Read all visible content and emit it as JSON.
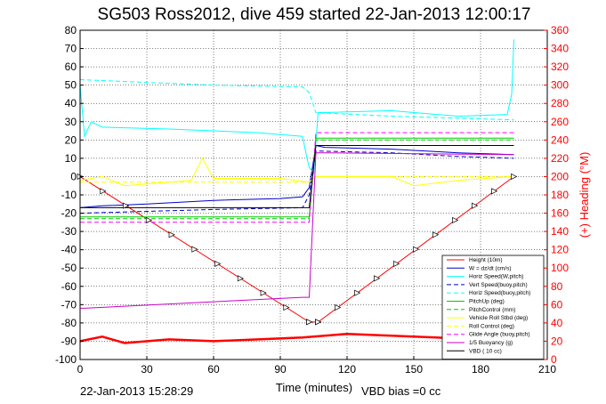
{
  "chart_data": {
    "type": "line",
    "title": "SG503 Ross2012, dive 459 started 22-Jan-2013 12:00:17",
    "xlabel": "Time (minutes)",
    "ylabel": "",
    "y2label": "(+) Heading (°M)",
    "xlim": [
      0,
      210
    ],
    "ylim": [
      -100,
      80
    ],
    "y2lim": [
      0,
      360
    ],
    "xticks": [
      "0",
      "30",
      "60",
      "90",
      "120",
      "150",
      "180",
      "210"
    ],
    "yticks": [
      "-100",
      "-90",
      "-80",
      "-70",
      "-60",
      "-50",
      "-40",
      "-30",
      "-20",
      "-10",
      "0",
      "10",
      "20",
      "30",
      "40",
      "50",
      "60",
      "70",
      "80"
    ],
    "y2ticks": [
      "0",
      "20",
      "40",
      "60",
      "80",
      "100",
      "120",
      "140",
      "160",
      "180",
      "200",
      "220",
      "240",
      "260",
      "280",
      "300",
      "320",
      "340",
      "360"
    ],
    "grid": true,
    "legend_position": "bottom-right",
    "footer_left": "22-Jan-2013 15:28:29",
    "footer_right": "VBD bias =0 cc",
    "series": [
      {
        "name": "Height (10m)",
        "color": "#ff0000",
        "style": "solid",
        "x": [
          0,
          103,
          107,
          195
        ],
        "y": [
          0,
          -79.5,
          -79.5,
          0
        ]
      },
      {
        "name": "W = dz/dt (cm/s)",
        "color": "#0000cc",
        "style": "solid",
        "x": [
          0,
          10,
          30,
          60,
          90,
          100,
          103,
          106,
          110,
          140,
          170,
          195
        ],
        "y": [
          -17,
          -16,
          -15,
          -13,
          -12,
          -11,
          -6,
          17,
          16,
          15,
          13,
          12
        ]
      },
      {
        "name": "Horiz Speed(W,pitch)",
        "color": "#00ffff",
        "style": "solid",
        "x": [
          0,
          2,
          5,
          10,
          40,
          80,
          100,
          102,
          103,
          105,
          107,
          110,
          140,
          170,
          192,
          194,
          195
        ],
        "y": [
          50,
          22,
          30,
          27,
          26,
          24,
          22,
          10,
          5,
          2,
          35,
          35,
          36,
          33,
          34,
          45,
          75
        ]
      },
      {
        "name": "Vert Speed(buoy,pitch)",
        "color": "#0000cc",
        "style": "dashed",
        "x": [
          0,
          30,
          60,
          100,
          103,
          106,
          140,
          170,
          195
        ],
        "y": [
          -20,
          -19,
          -18,
          -17,
          -10,
          14,
          13,
          11,
          10
        ]
      },
      {
        "name": "Horiz Speed(buoy,pitch)",
        "color": "#00ffff",
        "style": "dashed",
        "x": [
          0,
          20,
          60,
          100,
          103,
          106,
          140,
          195
        ],
        "y": [
          53,
          52,
          50,
          49,
          46,
          35,
          33,
          31
        ]
      },
      {
        "name": "PitchUp (deg)",
        "color": "#00cc00",
        "style": "solid",
        "x": [
          0,
          103,
          106,
          195
        ],
        "y": [
          -22,
          -22,
          21,
          21
        ]
      },
      {
        "name": "PitchControl (mm)",
        "color": "#00cc00",
        "style": "dashed",
        "x": [
          0,
          103,
          106,
          195
        ],
        "y": [
          -23,
          -23,
          20,
          20
        ]
      },
      {
        "name": "Vehicle Roll Stbd (deg)",
        "color": "#ffff00",
        "style": "solid",
        "x": [
          0,
          10,
          20,
          40,
          50,
          55,
          60,
          90,
          103,
          106,
          140,
          150,
          170,
          195
        ],
        "y": [
          -2,
          0,
          -5,
          -3,
          -2,
          10,
          -1,
          -1,
          -3,
          0,
          0,
          -5,
          -2,
          0
        ]
      },
      {
        "name": "Roll Control (deg)",
        "color": "#ffff00",
        "style": "dashed",
        "x": [
          0,
          103,
          106,
          195
        ],
        "y": [
          -3,
          -3,
          0,
          0
        ]
      },
      {
        "name": "Glide Angle (buoy,pitch)",
        "color": "#ff00ff",
        "style": "dashed",
        "x": [
          0,
          103,
          106,
          195
        ],
        "y": [
          -25,
          -25,
          24,
          24
        ]
      },
      {
        "name": "1/5 Buoyancy (g)",
        "color": "#cc00cc",
        "style": "solid",
        "x": [
          0,
          2,
          100,
          103,
          106,
          110,
          195
        ],
        "y": [
          -72,
          -72,
          -66,
          -66,
          13,
          13,
          12
        ]
      },
      {
        "name": "VBD ( 10 cc)",
        "color": "#000000",
        "style": "solid",
        "x": [
          0,
          103,
          106,
          195
        ],
        "y": [
          -17,
          -17,
          17,
          17
        ]
      }
    ],
    "heading_series": {
      "name": "Heading (°M)",
      "color": "#ff0000",
      "axis": "right",
      "x": [
        0,
        10,
        20,
        40,
        60,
        80,
        100,
        120,
        140,
        160,
        180,
        195
      ],
      "y": [
        20,
        25,
        18,
        22,
        20,
        22,
        24,
        28,
        26,
        24,
        22,
        24
      ]
    }
  }
}
